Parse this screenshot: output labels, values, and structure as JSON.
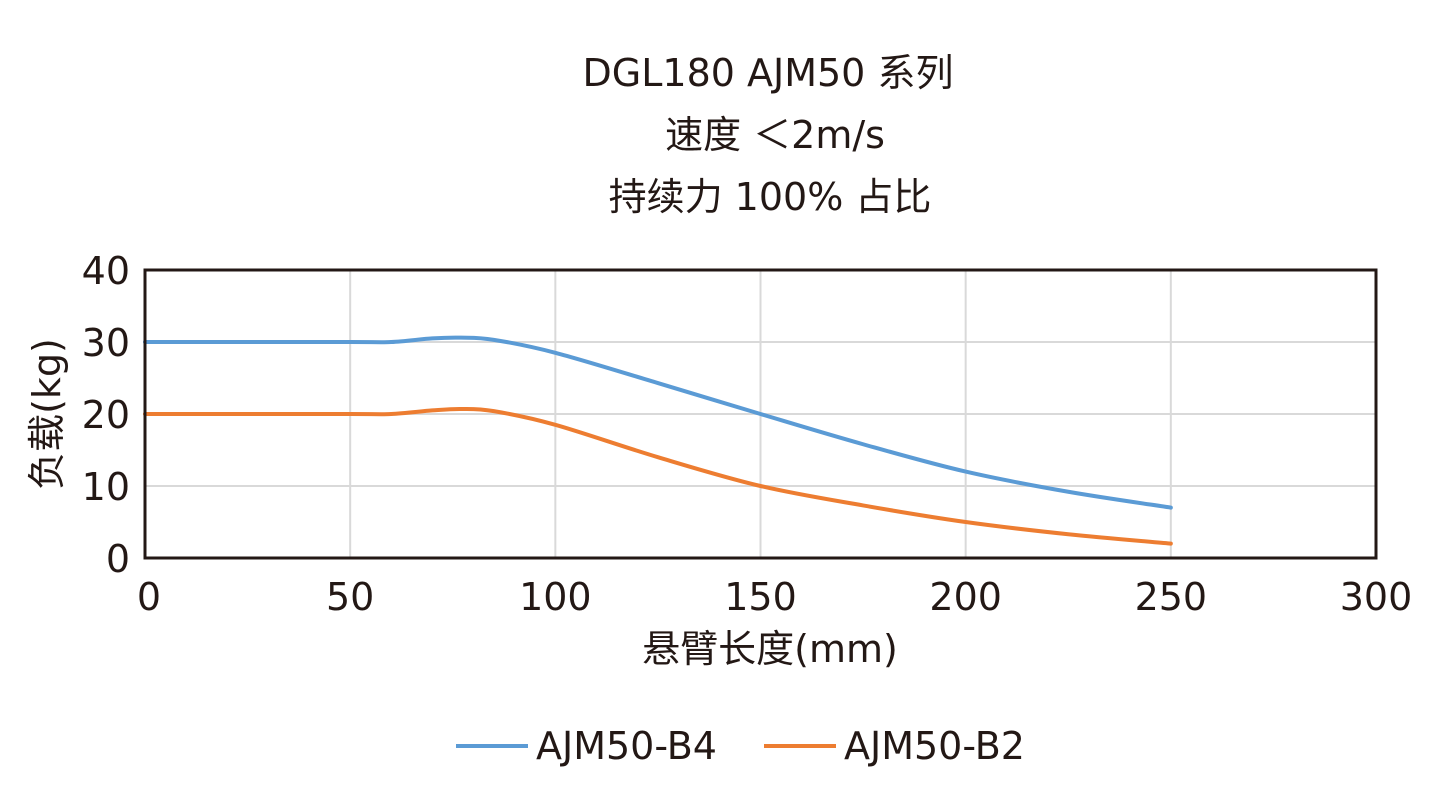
{
  "chart_data": {
    "type": "line",
    "title_lines": [
      "DGL180 AJM50 系列",
      "速度 ＜2m/s",
      "持续力 100% 占比"
    ],
    "xlabel": "悬臂长度(mm)",
    "ylabel": "负载(kg)",
    "xlim": [
      0,
      300
    ],
    "ylim": [
      0,
      40
    ],
    "xticks": [
      "0",
      "50",
      "100",
      "150",
      "200",
      "250",
      "300"
    ],
    "yticks": [
      "0",
      "10",
      "20",
      "30",
      "40"
    ],
    "grid": true,
    "legend_position": "bottom",
    "series": [
      {
        "name": "AJM50-B4",
        "color": "#5b9bd5",
        "points": [
          [
            0,
            30
          ],
          [
            50,
            30
          ],
          [
            60,
            30
          ],
          [
            70,
            30.5
          ],
          [
            77,
            30.6
          ],
          [
            85,
            30.3
          ],
          [
            100,
            28.5
          ],
          [
            125,
            24.3
          ],
          [
            150,
            20
          ],
          [
            175,
            15.8
          ],
          [
            200,
            12
          ],
          [
            225,
            9.2
          ],
          [
            250,
            7
          ]
        ]
      },
      {
        "name": "AJM50-B2",
        "color": "#ed7d31",
        "points": [
          [
            0,
            20
          ],
          [
            50,
            20
          ],
          [
            60,
            20
          ],
          [
            70,
            20.5
          ],
          [
            77,
            20.7
          ],
          [
            85,
            20.4
          ],
          [
            100,
            18.5
          ],
          [
            125,
            14
          ],
          [
            150,
            10
          ],
          [
            175,
            7.3
          ],
          [
            200,
            5
          ],
          [
            225,
            3.3
          ],
          [
            250,
            2
          ]
        ]
      }
    ]
  }
}
